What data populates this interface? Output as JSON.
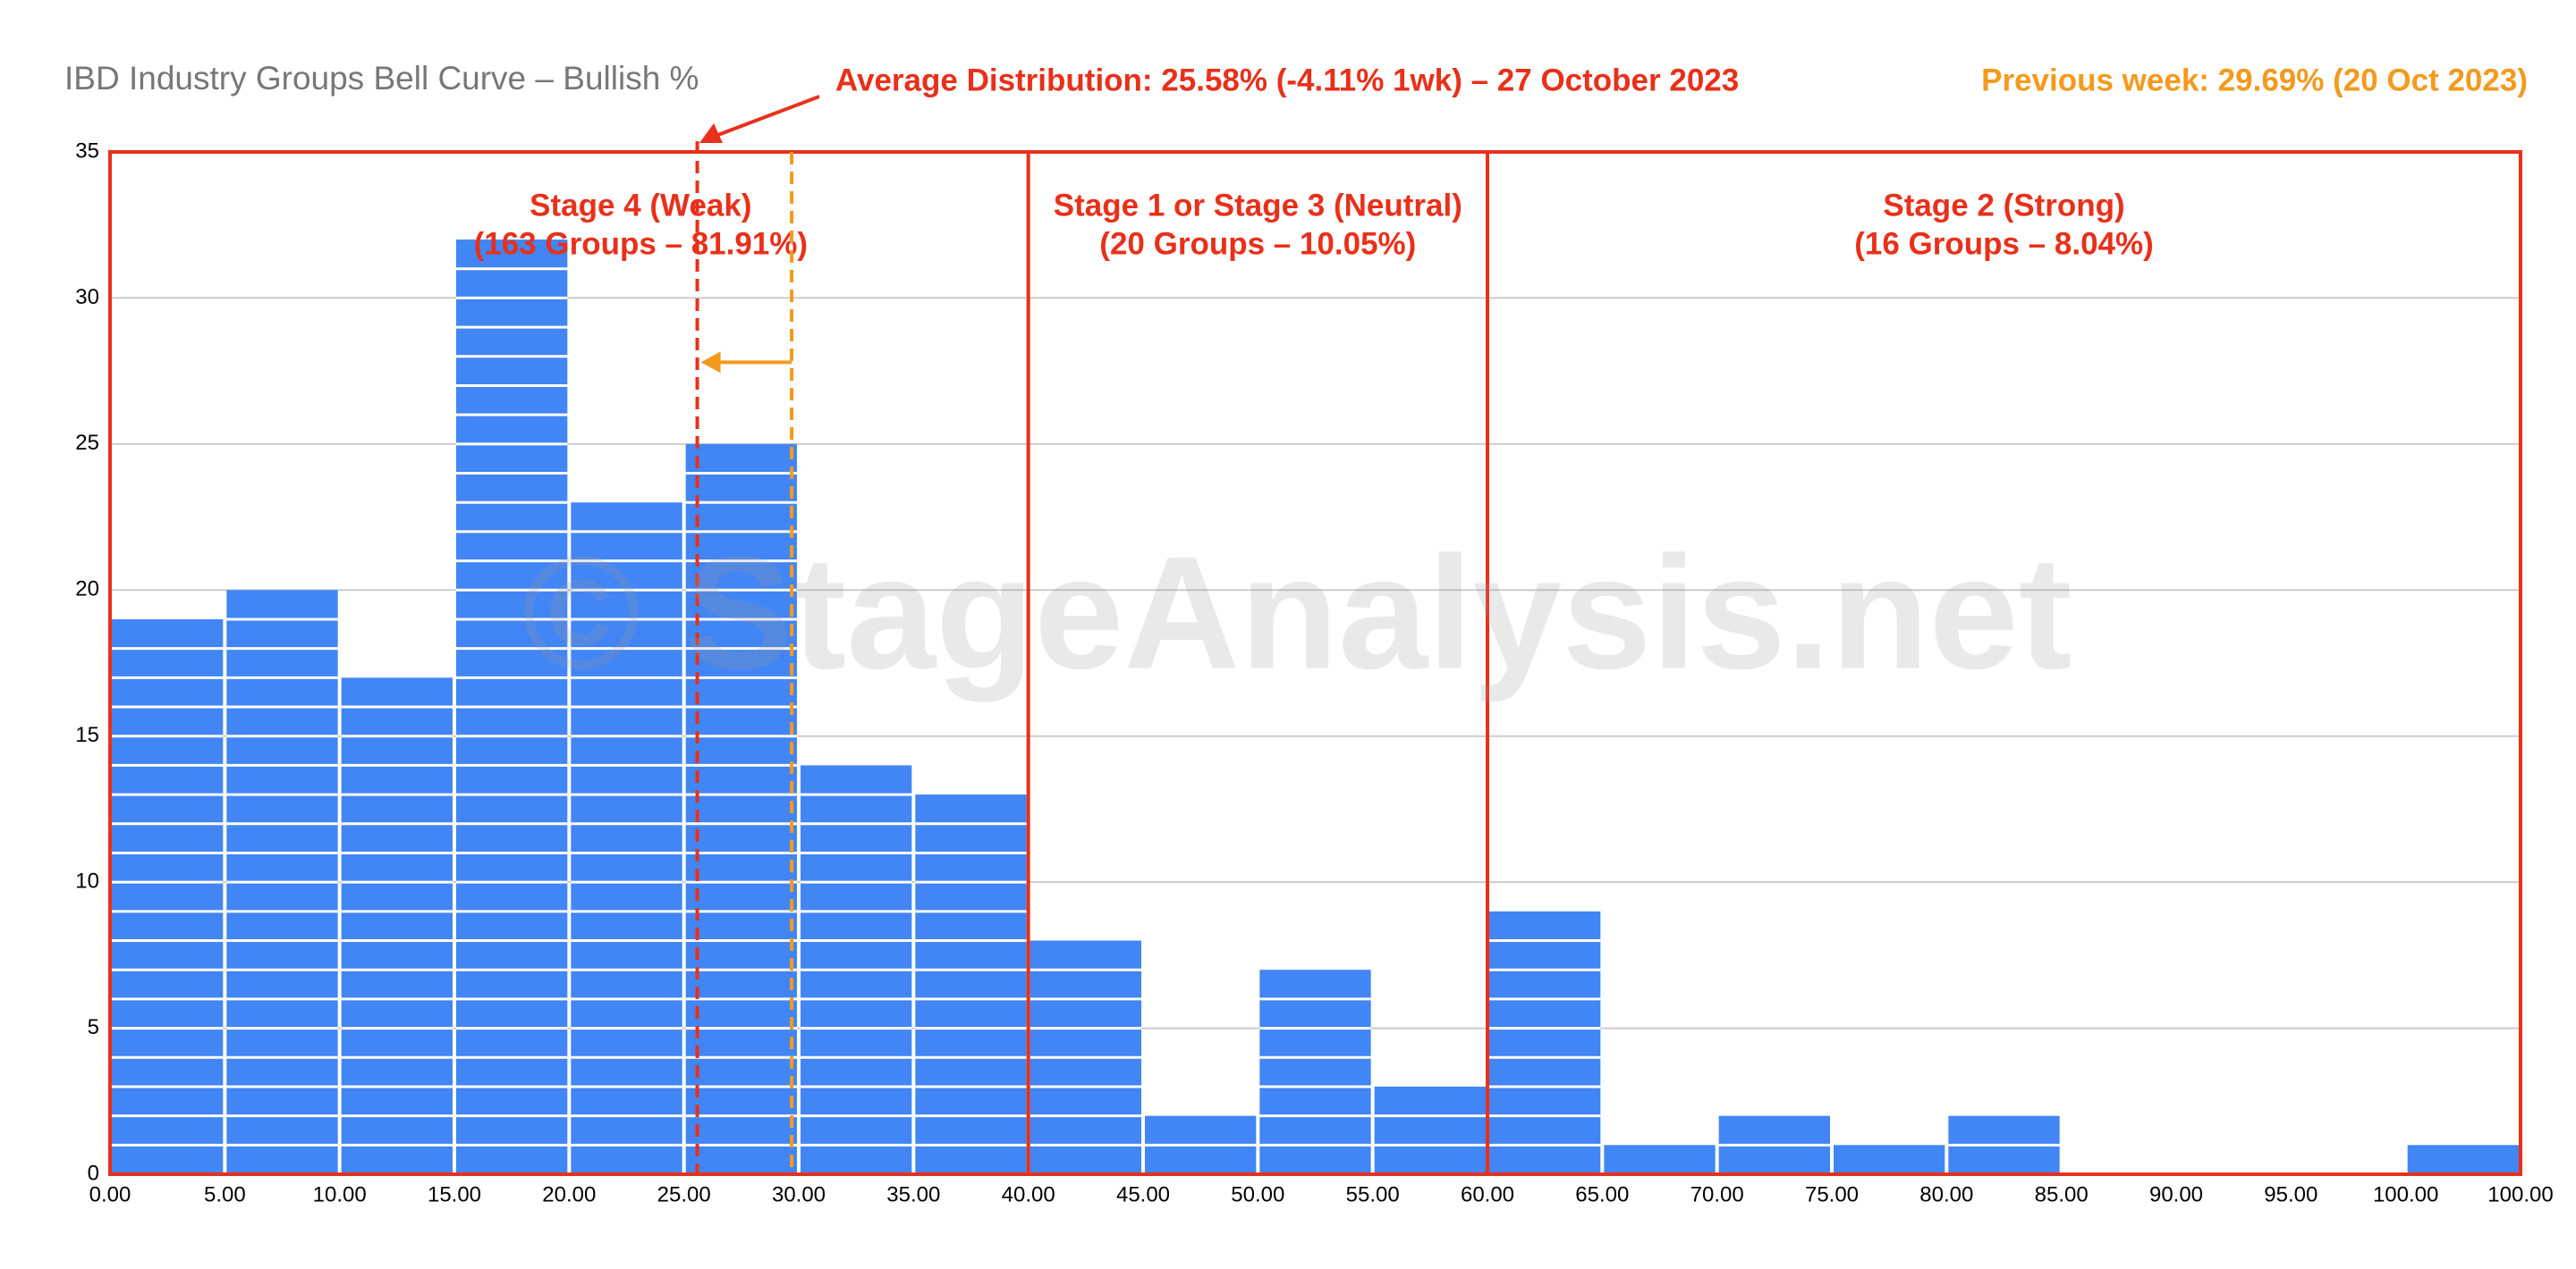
{
  "chart_data": {
    "type": "histogram",
    "title": "IBD Industry Groups Bell Curve – Bullish %",
    "annotation_current": "Average Distribution: 25.58% (-4.11% 1wk) – 27 October 2023",
    "annotation_previous": "Previous week: 29.69% (20 Oct 2023)",
    "watermark": "© StageAnalysis.net",
    "bins": [
      "0.00",
      "5.00",
      "10.00",
      "15.00",
      "20.00",
      "25.00",
      "30.00",
      "35.00",
      "40.00",
      "45.00",
      "50.00",
      "55.00",
      "60.00",
      "65.00",
      "70.00",
      "75.00",
      "80.00",
      "85.00",
      "90.00",
      "95.00",
      "100.00",
      "100.00"
    ],
    "values": [
      19,
      20,
      17,
      32,
      23,
      25,
      14,
      13,
      8,
      2,
      7,
      3,
      9,
      1,
      2,
      1,
      2,
      0,
      0,
      0,
      1
    ],
    "color": "#4285f4",
    "ylim": [
      0,
      35
    ],
    "yticks": [
      0,
      5,
      10,
      15,
      20,
      25,
      30,
      35
    ],
    "grid": true,
    "current_average": 25.58,
    "previous_average": 29.69,
    "zones": [
      {
        "lines": [
          "Stage 4 (Weak)",
          "(163 Groups – 81.91%)"
        ],
        "end": 40
      },
      {
        "lines": [
          "Stage 1 or Stage 3 (Neutral)",
          "(20 Groups – 10.05%)"
        ],
        "end": 60
      },
      {
        "lines": [
          "Stage 2 (Strong)",
          "(16 Groups – 8.04%)"
        ]
      }
    ]
  }
}
